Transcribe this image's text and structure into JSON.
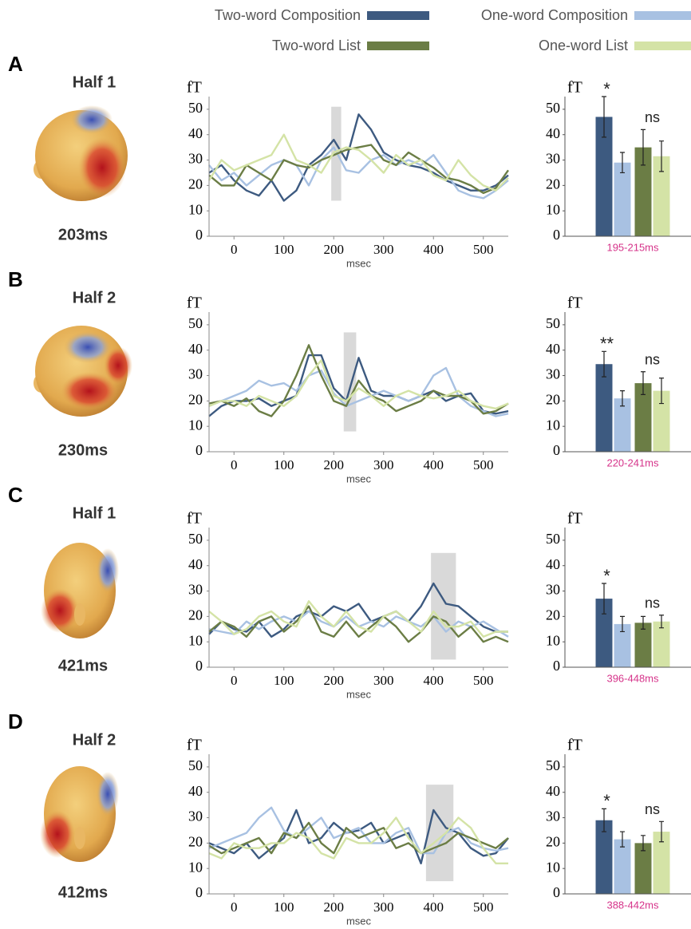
{
  "legend": [
    {
      "name": "Two-word Composition",
      "color": "#3d5a80"
    },
    {
      "name": "One-word Composition",
      "color": "#a8c1e2"
    },
    {
      "name": "Two-word List",
      "color": "#6b7d45"
    },
    {
      "name": "One-word List",
      "color": "#d4e3a6"
    }
  ],
  "panels": [
    {
      "label": "A",
      "title": "Half 1",
      "latency": "203ms"
    },
    {
      "label": "B",
      "title": "Half 2",
      "latency": "230ms"
    },
    {
      "label": "C",
      "title": "Half 1",
      "latency": "421ms"
    },
    {
      "label": "D",
      "title": "Half 2",
      "latency": "412ms"
    }
  ],
  "chart_data": [
    {
      "type": "line",
      "ylabel": "fT",
      "xlabel": "msec",
      "xlim": [
        -50,
        550
      ],
      "xticks": [
        0,
        100,
        200,
        300,
        400,
        500
      ],
      "ylim": [
        0,
        55
      ],
      "yticks": [
        0,
        10,
        20,
        30,
        40,
        50
      ],
      "x": [
        -50,
        -25,
        0,
        25,
        50,
        75,
        100,
        125,
        150,
        175,
        200,
        225,
        250,
        275,
        300,
        325,
        350,
        375,
        400,
        425,
        450,
        475,
        500,
        525,
        550
      ],
      "highlight": {
        "x": [
          195,
          215
        ],
        "y": [
          14,
          51
        ]
      },
      "series": [
        {
          "values": [
            25,
            28,
            22,
            18,
            16,
            22,
            14,
            18,
            28,
            32,
            38,
            30,
            48,
            42,
            33,
            30,
            28,
            27,
            25,
            22,
            20,
            18,
            18,
            20,
            24
          ]
        },
        {
          "values": [
            28,
            22,
            25,
            20,
            24,
            28,
            30,
            28,
            20,
            30,
            35,
            26,
            25,
            30,
            32,
            28,
            30,
            28,
            32,
            25,
            18,
            16,
            15,
            18,
            22
          ]
        },
        {
          "values": [
            24,
            20,
            20,
            28,
            25,
            22,
            30,
            28,
            27,
            30,
            32,
            34,
            35,
            36,
            30,
            28,
            33,
            30,
            27,
            23,
            22,
            20,
            17,
            19,
            26
          ]
        },
        {
          "values": [
            22,
            30,
            26,
            28,
            30,
            32,
            40,
            30,
            28,
            25,
            33,
            35,
            34,
            30,
            25,
            32,
            28,
            30,
            24,
            22,
            30,
            24,
            20,
            18,
            23
          ]
        }
      ]
    },
    {
      "type": "bar",
      "ylabel": "fT",
      "xlabel": "195-215ms",
      "ylim": [
        0,
        55
      ],
      "yticks": [
        0,
        10,
        20,
        30,
        40,
        50
      ],
      "values": [
        47,
        29,
        35,
        31.5
      ],
      "errors": [
        8,
        4,
        7,
        6
      ],
      "annotations": [
        "*",
        "ns"
      ]
    },
    {
      "type": "line",
      "ylabel": "fT",
      "xlabel": "msec",
      "xlim": [
        -50,
        550
      ],
      "xticks": [
        0,
        100,
        200,
        300,
        400,
        500
      ],
      "ylim": [
        0,
        55
      ],
      "yticks": [
        0,
        10,
        20,
        30,
        40,
        50
      ],
      "x": [
        -50,
        -25,
        0,
        25,
        50,
        75,
        100,
        125,
        150,
        175,
        200,
        225,
        250,
        275,
        300,
        325,
        350,
        375,
        400,
        425,
        450,
        475,
        500,
        525,
        550
      ],
      "highlight": {
        "x": [
          220,
          245
        ],
        "y": [
          8,
          47
        ]
      },
      "series": [
        {
          "values": [
            14,
            18,
            20,
            20,
            21,
            18,
            20,
            22,
            38,
            38,
            25,
            20,
            37,
            24,
            22,
            22,
            20,
            22,
            24,
            20,
            22,
            23,
            16,
            15,
            16
          ]
        },
        {
          "values": [
            18,
            20,
            22,
            24,
            28,
            26,
            27,
            24,
            30,
            32,
            23,
            18,
            20,
            22,
            24,
            22,
            20,
            22,
            30,
            33,
            22,
            18,
            16,
            14,
            15
          ]
        },
        {
          "values": [
            19,
            20,
            18,
            21,
            16,
            14,
            20,
            30,
            42,
            30,
            20,
            18,
            28,
            22,
            20,
            16,
            18,
            20,
            24,
            22,
            22,
            20,
            15,
            16,
            19
          ]
        },
        {
          "values": [
            18,
            20,
            20,
            18,
            22,
            20,
            18,
            22,
            30,
            36,
            22,
            20,
            25,
            22,
            18,
            22,
            24,
            22,
            21,
            22,
            24,
            20,
            18,
            17,
            19
          ]
        }
      ]
    },
    {
      "type": "bar",
      "ylabel": "fT",
      "xlabel": "220-241ms",
      "ylim": [
        0,
        55
      ],
      "yticks": [
        0,
        10,
        20,
        30,
        40,
        50
      ],
      "values": [
        34.5,
        21,
        27,
        24
      ],
      "errors": [
        5,
        3,
        4.5,
        5
      ],
      "annotations": [
        "**",
        "ns"
      ]
    },
    {
      "type": "line",
      "ylabel": "fT",
      "xlabel": "msec",
      "xlim": [
        -50,
        550
      ],
      "xticks": [
        0,
        100,
        200,
        300,
        400,
        500
      ],
      "ylim": [
        0,
        55
      ],
      "yticks": [
        0,
        10,
        20,
        30,
        40,
        50
      ],
      "x": [
        -50,
        -25,
        0,
        25,
        50,
        75,
        100,
        125,
        150,
        175,
        200,
        225,
        250,
        275,
        300,
        325,
        350,
        375,
        400,
        425,
        450,
        475,
        500,
        525,
        550
      ],
      "highlight": {
        "x": [
          395,
          445
        ],
        "y": [
          3,
          45
        ]
      },
      "series": [
        {
          "values": [
            13,
            18,
            15,
            14,
            18,
            12,
            15,
            20,
            22,
            20,
            24,
            22,
            25,
            18,
            20,
            22,
            18,
            24,
            33,
            25,
            24,
            20,
            16,
            14,
            14
          ]
        },
        {
          "values": [
            15,
            14,
            13,
            18,
            15,
            18,
            20,
            18,
            22,
            18,
            16,
            20,
            16,
            18,
            16,
            20,
            18,
            16,
            20,
            14,
            18,
            16,
            18,
            15,
            12
          ]
        },
        {
          "values": [
            14,
            18,
            16,
            12,
            18,
            20,
            14,
            18,
            24,
            14,
            12,
            18,
            12,
            16,
            20,
            16,
            10,
            14,
            20,
            18,
            12,
            16,
            10,
            12,
            10
          ]
        },
        {
          "values": [
            22,
            18,
            13,
            15,
            20,
            22,
            18,
            16,
            26,
            20,
            16,
            22,
            16,
            14,
            20,
            22,
            18,
            14,
            22,
            16,
            16,
            18,
            12,
            14,
            14
          ]
        }
      ]
    },
    {
      "type": "bar",
      "ylabel": "fT",
      "xlabel": "396-448ms",
      "ylim": [
        0,
        55
      ],
      "yticks": [
        0,
        10,
        20,
        30,
        40,
        50
      ],
      "values": [
        27,
        17,
        17.5,
        18
      ],
      "errors": [
        6,
        3,
        2.5,
        2.5
      ],
      "annotations": [
        "*",
        "ns"
      ]
    },
    {
      "type": "line",
      "ylabel": "fT",
      "xlabel": "msec",
      "xlim": [
        -50,
        550
      ],
      "xticks": [
        0,
        100,
        200,
        300,
        400,
        500
      ],
      "ylim": [
        0,
        55
      ],
      "yticks": [
        0,
        10,
        20,
        30,
        40,
        50
      ],
      "x": [
        -50,
        -25,
        0,
        25,
        50,
        75,
        100,
        125,
        150,
        175,
        200,
        225,
        250,
        275,
        300,
        325,
        350,
        375,
        400,
        425,
        450,
        475,
        500,
        525,
        550
      ],
      "highlight": {
        "x": [
          385,
          440
        ],
        "y": [
          5,
          43
        ]
      },
      "series": [
        {
          "values": [
            20,
            18,
            16,
            20,
            14,
            18,
            22,
            33,
            20,
            22,
            28,
            24,
            25,
            28,
            20,
            22,
            24,
            12,
            33,
            26,
            24,
            18,
            15,
            16,
            22
          ]
        },
        {
          "values": [
            18,
            20,
            22,
            24,
            30,
            34,
            25,
            22,
            26,
            30,
            22,
            24,
            26,
            20,
            20,
            24,
            26,
            16,
            16,
            24,
            26,
            20,
            18,
            17,
            18
          ]
        },
        {
          "values": [
            19,
            16,
            18,
            20,
            22,
            16,
            24,
            22,
            28,
            20,
            16,
            26,
            22,
            24,
            26,
            18,
            20,
            16,
            18,
            20,
            24,
            22,
            20,
            18,
            22
          ]
        },
        {
          "values": [
            16,
            14,
            20,
            18,
            18,
            20,
            20,
            24,
            22,
            16,
            14,
            22,
            20,
            20,
            24,
            30,
            22,
            16,
            20,
            24,
            30,
            26,
            18,
            12,
            12
          ]
        }
      ]
    },
    {
      "type": "bar",
      "ylabel": "fT",
      "xlabel": "388-442ms",
      "ylim": [
        0,
        55
      ],
      "yticks": [
        0,
        10,
        20,
        30,
        40,
        50
      ],
      "values": [
        29,
        21.5,
        20,
        24.5
      ],
      "errors": [
        4.5,
        3,
        3,
        4
      ],
      "annotations": [
        "*",
        "ns"
      ]
    }
  ]
}
